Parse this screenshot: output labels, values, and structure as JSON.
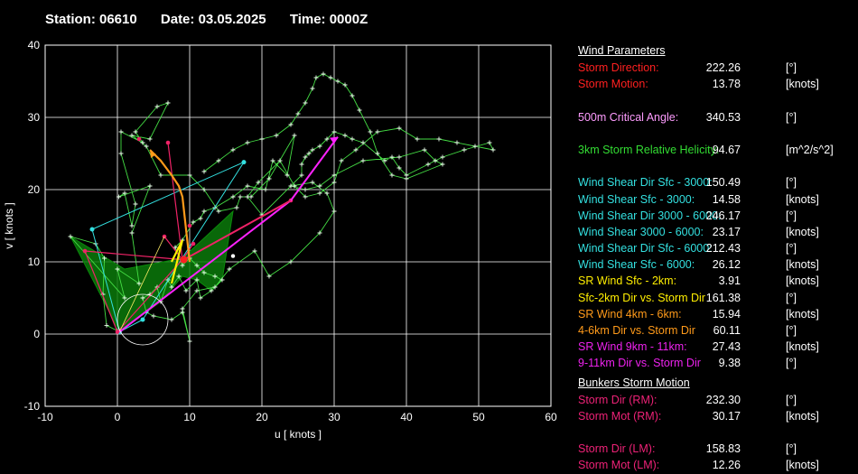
{
  "header": {
    "station": "Station: 06610",
    "date": "Date: 03.05.2025",
    "time": "Time: 0000Z"
  },
  "chart_data": {
    "type": "scatter",
    "title": "",
    "xlabel": "u  [ knots ]",
    "ylabel": "v  [ knots ]",
    "xlim": [
      -10,
      60
    ],
    "ylim": [
      -10,
      40
    ],
    "xticks": [
      "-10",
      "0",
      "10",
      "20",
      "30",
      "40",
      "50",
      "60"
    ],
    "yticks": [
      "-10",
      "0",
      "10",
      "20",
      "30",
      "40"
    ],
    "grid": true,
    "green_hodograph": [
      [
        0.3,
        0.3
      ],
      [
        -1.5,
        1.2
      ],
      [
        -2,
        5.5
      ],
      [
        -1.8,
        10.5
      ],
      [
        -3,
        12.5
      ],
      [
        -6.5,
        13.5
      ],
      [
        1,
        5
      ],
      [
        0,
        9
      ],
      [
        3,
        7
      ],
      [
        2,
        14
      ],
      [
        4.5,
        20.5
      ],
      [
        0.2,
        19
      ],
      [
        1,
        19.5
      ],
      [
        2,
        15
      ],
      [
        2.5,
        18
      ],
      [
        0.5,
        25
      ],
      [
        0.5,
        28
      ],
      [
        3.5,
        26.5
      ],
      [
        2.5,
        28
      ],
      [
        5.5,
        31.5
      ],
      [
        7,
        32
      ],
      [
        4.5,
        27
      ],
      [
        2,
        27.5
      ],
      [
        4,
        26
      ],
      [
        6,
        22
      ],
      [
        10,
        22
      ],
      [
        12,
        20
      ],
      [
        14,
        17
      ],
      [
        16.5,
        17.5
      ],
      [
        17,
        19
      ],
      [
        18.5,
        19
      ],
      [
        21,
        21.5
      ],
      [
        24.5,
        27.5
      ],
      [
        23.5,
        22
      ],
      [
        21.5,
        24
      ],
      [
        20.5,
        20
      ],
      [
        18,
        20.5
      ],
      [
        16,
        19
      ],
      [
        13.5,
        17.5
      ],
      [
        12,
        17
      ],
      [
        11.5,
        16
      ],
      [
        10.5,
        15.5
      ],
      [
        9,
        13
      ],
      [
        8,
        12
      ],
      [
        9,
        9.5
      ],
      [
        10,
        10.5
      ],
      [
        11,
        9.5
      ],
      [
        12,
        8.5
      ],
      [
        13.5,
        8
      ],
      [
        14.5,
        7.5
      ],
      [
        13,
        6
      ],
      [
        11.5,
        5
      ],
      [
        11,
        7.5
      ],
      [
        9.5,
        6
      ],
      [
        8.5,
        8
      ],
      [
        7.5,
        6.5
      ],
      [
        7,
        7.5
      ],
      [
        6,
        4.5
      ],
      [
        5.5,
        6.5
      ],
      [
        4.5,
        5.5
      ],
      [
        3.5,
        5
      ],
      [
        4,
        3
      ],
      [
        5,
        2.5
      ],
      [
        7.5,
        2
      ],
      [
        9,
        3
      ],
      [
        10,
        -1
      ],
      [
        9,
        3.5
      ],
      [
        11,
        6
      ],
      [
        13.5,
        6.5
      ],
      [
        15.5,
        9
      ],
      [
        19,
        11.5
      ],
      [
        21,
        8
      ],
      [
        24,
        10
      ],
      [
        28,
        14
      ],
      [
        30,
        17
      ],
      [
        29,
        19.5
      ],
      [
        27,
        21
      ],
      [
        24,
        20.5
      ],
      [
        20,
        16.5
      ],
      [
        18,
        19
      ],
      [
        19.5,
        21
      ],
      [
        22.5,
        24
      ],
      [
        24.5,
        20.5
      ],
      [
        26,
        19
      ],
      [
        28,
        19.5
      ],
      [
        30,
        21
      ],
      [
        31,
        24
      ],
      [
        33,
        25.5
      ],
      [
        36,
        28
      ],
      [
        39,
        28.5
      ],
      [
        41.5,
        27
      ],
      [
        44.5,
        27
      ],
      [
        47,
        26.5
      ],
      [
        49.5,
        26
      ],
      [
        52,
        25.5
      ],
      [
        51.5,
        26.5
      ],
      [
        48,
        25.5
      ],
      [
        45,
        24.5
      ],
      [
        43,
        23.5
      ],
      [
        40,
        22
      ],
      [
        39,
        23
      ],
      [
        38,
        24.5
      ],
      [
        37,
        24
      ],
      [
        34,
        26.5
      ],
      [
        32.5,
        27
      ],
      [
        31.5,
        27.5
      ],
      [
        30,
        28
      ],
      [
        29,
        27
      ],
      [
        28,
        26
      ],
      [
        27,
        25.5
      ],
      [
        26.5,
        25
      ],
      [
        26,
        24.5
      ],
      [
        25.5,
        23.5
      ],
      [
        25.5,
        22
      ],
      [
        24,
        20.5
      ],
      [
        26,
        20
      ],
      [
        28,
        20.5
      ],
      [
        30,
        22
      ],
      [
        34,
        24
      ],
      [
        39,
        24.5
      ],
      [
        42.5,
        25.5
      ],
      [
        44,
        24
      ],
      [
        45,
        23.5
      ],
      [
        40,
        21.5
      ],
      [
        38,
        22
      ],
      [
        36,
        25
      ],
      [
        35,
        28
      ],
      [
        33.5,
        31
      ],
      [
        32.5,
        33
      ],
      [
        31.5,
        34.5
      ],
      [
        30.5,
        35
      ],
      [
        29.5,
        35.5
      ],
      [
        28.5,
        36
      ],
      [
        27.5,
        35.5
      ],
      [
        27,
        34
      ],
      [
        26,
        32
      ],
      [
        25,
        30.5
      ],
      [
        24,
        29
      ],
      [
        22,
        27.5
      ],
      [
        20,
        27
      ],
      [
        18,
        26.5
      ],
      [
        16,
        25.5
      ],
      [
        14,
        24
      ],
      [
        12,
        22.5
      ]
    ],
    "storm_motion_rm_vector": [
      [
        0,
        0
      ],
      [
        30.2,
        27.0
      ]
    ],
    "storm_motion_lm_vector": [
      [
        0,
        0
      ],
      [
        24,
        18.5
      ]
    ],
    "cyan_points": [
      [
        0.3,
        0.3
      ],
      [
        -3.5,
        14.5
      ],
      [
        3.5,
        2
      ],
      [
        17.5,
        23.8
      ],
      [
        6.5,
        26.5
      ],
      [
        4.5,
        25.5
      ],
      [
        1,
        9
      ]
    ],
    "red_points": [
      [
        9,
        10.3
      ],
      [
        7,
        26.5
      ],
      [
        6.5,
        13.5
      ],
      [
        10,
        15
      ],
      [
        -4.5,
        11.5
      ],
      [
        0,
        0.3
      ],
      [
        24,
        18.5
      ],
      [
        10.5,
        12.5
      ],
      [
        3,
        27
      ]
    ],
    "orange_vector": [
      [
        4.5,
        25.5
      ],
      [
        6,
        24
      ],
      [
        7.5,
        22
      ],
      [
        8.5,
        20.5
      ],
      [
        9,
        19
      ],
      [
        10,
        10
      ]
    ],
    "yellow_vector": [
      [
        7.5,
        10
      ],
      [
        8.5,
        12
      ],
      [
        9,
        13
      ],
      [
        8,
        9
      ],
      [
        7.5,
        7
      ]
    ],
    "magenta_vector": [
      [
        0.3,
        0.3
      ],
      [
        24,
        18.5
      ],
      [
        30.5,
        27.3
      ]
    ],
    "bunkers_rm": [
      9.2,
      10.3
    ],
    "sfc_shear_rm_circle_center": [
      3.5,
      2
    ],
    "sfc_shear_rm_circle_radius_knots": 3.5
  },
  "panel": {
    "wind_params_title": "Wind Parameters",
    "bunkers_title": "Bunkers Storm Motion",
    "rows": [
      {
        "label": "Storm Direction:",
        "value": "222.26",
        "unit": "[°]",
        "color": "#ff2020"
      },
      {
        "label": "Storm Motion:",
        "value": "13.78",
        "unit": "[knots]",
        "color": "#ff2020"
      },
      {
        "label": "",
        "value": "",
        "unit": "",
        "color": "#fff"
      },
      {
        "label": "500m Critical Angle:",
        "value": "340.53",
        "unit": "[°]",
        "color": "#ff9cff"
      },
      {
        "label": "",
        "value": "",
        "unit": "",
        "color": "#fff"
      },
      {
        "label": "3km Storm Relative Helicity:",
        "value": "94.67",
        "unit": "[m^2/s^2]",
        "color": "#33dd33"
      },
      {
        "label": "",
        "value": "",
        "unit": "",
        "color": "#fff"
      },
      {
        "label": "Wind Shear Dir Sfc - 3000:",
        "value": "150.49",
        "unit": "[°]",
        "color": "#33e0e0"
      },
      {
        "label": "Wind Shear Sfc - 3000:",
        "value": "14.58",
        "unit": "[knots]",
        "color": "#33e0e0"
      },
      {
        "label": "Wind Shear Dir 3000 - 6000:",
        "value": "246.17",
        "unit": "[°]",
        "color": "#33e0e0"
      },
      {
        "label": "Wind Shear 3000 - 6000:",
        "value": "23.17",
        "unit": "[knots]",
        "color": "#33e0e0"
      },
      {
        "label": "Wind Shear Dir Sfc - 6000:",
        "value": "212.43",
        "unit": "[°]",
        "color": "#33e0e0"
      },
      {
        "label": "Wind Shear Sfc - 6000:",
        "value": "26.12",
        "unit": "[knots]",
        "color": "#33e0e0"
      },
      {
        "label": "SR Wind Sfc - 2km:",
        "value": "3.91",
        "unit": "[knots]",
        "color": "#ffee00"
      },
      {
        "label": "Sfc-2km Dir vs. Storm Dir",
        "value": "161.38",
        "unit": "[°]",
        "color": "#ffee00"
      },
      {
        "label": "SR Wind 4km - 6km:",
        "value": "15.94",
        "unit": "[knots]",
        "color": "#ff9a1a"
      },
      {
        "label": "4-6km Dir vs. Storm Dir",
        "value": "60.11",
        "unit": "[°]",
        "color": "#ff9a1a"
      },
      {
        "label": "SR Wind 9km - 11km:",
        "value": "27.43",
        "unit": "[knots]",
        "color": "#ee22ee"
      },
      {
        "label": "9-11km Dir vs. Storm Dir",
        "value": "9.38",
        "unit": "[°]",
        "color": "#ee22ee"
      }
    ],
    "bunkers_rows": [
      {
        "label": "Storm Dir (RM):",
        "value": "232.30",
        "unit": "[°]",
        "color": "#ee2277"
      },
      {
        "label": "Storm Mot (RM):",
        "value": "30.17",
        "unit": "[knots]",
        "color": "#ee2277"
      },
      {
        "label": "",
        "value": "",
        "unit": "",
        "color": "#fff"
      },
      {
        "label": "Storm Dir (LM):",
        "value": "158.83",
        "unit": "[°]",
        "color": "#ee2277"
      },
      {
        "label": "Storm Mot (LM):",
        "value": "12.26",
        "unit": "[knots]",
        "color": "#ee2277"
      }
    ]
  }
}
